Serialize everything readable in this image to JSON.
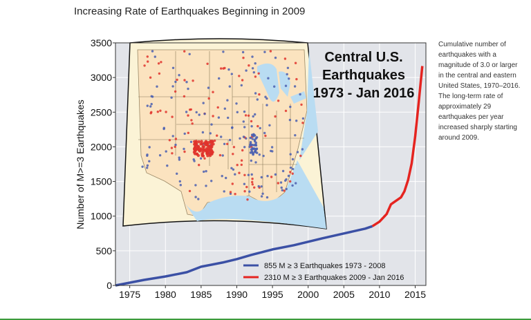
{
  "title": "Increasing Rate of Earthquakes Beginning in 2009",
  "side_note": "Cumulative number of earthquakes with a magnitude of 3.0 or larger in the central and eastern United States, 1970–2016. The long-term rate of approximately 29 earthquakes per year increased sharply starting around 2009.",
  "inset": {
    "title_lines": [
      "Central U.S.",
      "Earthquakes",
      "1973 - Jan 2016"
    ],
    "colors": {
      "land": "#fbe3bf",
      "land_outer": "#fbf3d6",
      "water": "#b9dcf2",
      "border": "#555555",
      "dot_blue": "#4a5fb0",
      "dot_red": "#e0322b"
    }
  },
  "chart_data": {
    "type": "line",
    "title": "",
    "xlabel": "",
    "ylabel": "Number of M>=3 Earthquakes",
    "xlim": [
      1973,
      2016.5
    ],
    "ylim": [
      0,
      3500
    ],
    "x_ticks": [
      1975,
      1980,
      1985,
      1990,
      1995,
      2000,
      2005,
      2010,
      2015
    ],
    "y_ticks": [
      0,
      500,
      1000,
      1500,
      2000,
      2500,
      3000,
      3500
    ],
    "grid": true,
    "legend_position": "bottom-right",
    "series": [
      {
        "name": "855   M ≥ 3 Earthquakes 1973 - 2008",
        "color": "#3b50a5",
        "x": [
          1973,
          1975,
          1977,
          1980,
          1983,
          1985,
          1988,
          1990,
          1992,
          1995,
          1998,
          2000,
          2002,
          2005,
          2008,
          2009
        ],
        "y": [
          0,
          40,
          80,
          130,
          190,
          270,
          330,
          380,
          440,
          520,
          580,
          630,
          680,
          750,
          820,
          855
        ]
      },
      {
        "name": "2310 M ≥ 3 Earthquakes 2009 - Jan 2016",
        "color": "#e52420",
        "x": [
          2009,
          2010,
          2011,
          2011.6,
          2012,
          2013,
          2013.5,
          2014,
          2014.5,
          2015,
          2015.5,
          2016
        ],
        "y": [
          855,
          920,
          1030,
          1170,
          1200,
          1270,
          1360,
          1520,
          1760,
          2150,
          2650,
          3165
        ]
      }
    ]
  }
}
